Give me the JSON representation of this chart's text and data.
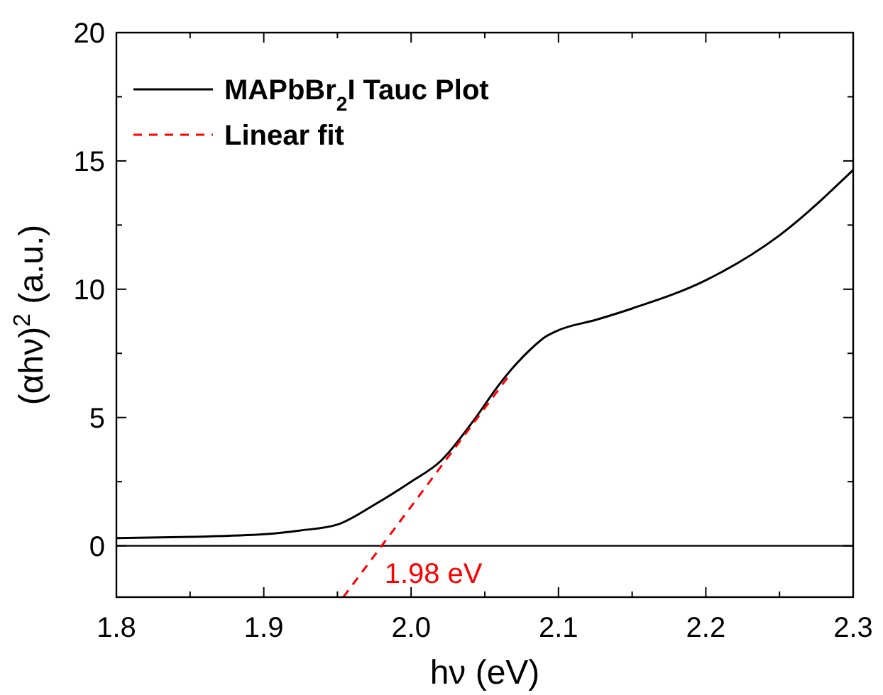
{
  "chart_data": {
    "type": "line",
    "xlabel": "hν (eV)",
    "ylabel": "(αhν)$^{2}$ (a.u.)",
    "xlim": [
      1.8,
      2.3
    ],
    "ylim": [
      -2,
      20
    ],
    "xticks": [
      1.8,
      {
        "value": 1.85,
        "label": null
      },
      1.9,
      {
        "value": 1.95,
        "label": null
      },
      {
        "value": 2.0,
        "label": "2.0"
      },
      {
        "value": 2.05,
        "label": null
      },
      2.1,
      {
        "value": 2.15,
        "label": null
      },
      2.2,
      {
        "value": 2.25,
        "label": null
      },
      2.3
    ],
    "yticks": [
      0,
      {
        "value": 2.5,
        "label": null
      },
      5,
      {
        "value": 7.5,
        "label": null
      },
      10,
      {
        "value": 12.5,
        "label": null
      },
      15,
      {
        "value": 17.5,
        "label": null
      },
      20
    ],
    "series": [
      {
        "name": "MAPbBr$_{2}$I Tauc Plot",
        "color": "#000000",
        "line_style": "solid",
        "x": [
          1.8,
          1.85,
          1.9,
          1.925,
          1.95,
          1.975,
          2.0,
          2.02,
          2.042,
          2.06,
          2.07,
          2.08,
          2.09,
          2.1,
          2.125,
          2.15,
          2.2,
          2.25,
          2.3
        ],
        "values": [
          0.3,
          0.35,
          0.45,
          0.6,
          0.83,
          1.6,
          2.5,
          3.3,
          4.85,
          6.3,
          7.0,
          7.6,
          8.1,
          8.4,
          8.8,
          9.25,
          10.35,
          12.1,
          14.65
        ]
      },
      {
        "name": "Linear fit",
        "color": "#ff0000",
        "line_style": "dashed",
        "x": [
          1.954,
          2.066
        ],
        "values": [
          -2,
          6.6
        ]
      }
    ],
    "ref_lines": [
      {
        "axis": "y",
        "value": 0,
        "color": "#000000"
      }
    ],
    "annotations": [
      {
        "text": "1.98 eV",
        "x": 1.98,
        "y": 0
      }
    ],
    "legend": "top left",
    "grid": false
  }
}
